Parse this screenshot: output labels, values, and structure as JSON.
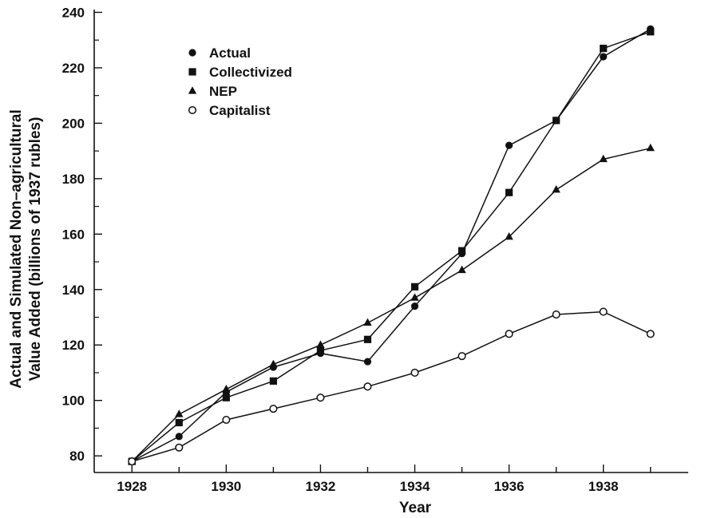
{
  "chart_data": {
    "type": "line",
    "xlabel": "Year",
    "ylabel_lines": [
      "Actual and Simulated Non–agricultural",
      "Value Added (billions of 1937 rubles)"
    ],
    "x": [
      1928,
      1929,
      1930,
      1931,
      1932,
      1933,
      1934,
      1935,
      1936,
      1937,
      1938,
      1939
    ],
    "xlim": [
      1927.2,
      1939.8
    ],
    "ylim": [
      74,
      241
    ],
    "x_ticks": [
      1928,
      1930,
      1932,
      1934,
      1936,
      1938
    ],
    "y_ticks": [
      80,
      100,
      120,
      140,
      160,
      180,
      200,
      220,
      240
    ],
    "grid": false,
    "legend_position": "top-left",
    "series": [
      {
        "name": "Actual",
        "marker": "filled-circle",
        "values": [
          78,
          87,
          103,
          112,
          117,
          114,
          134,
          153,
          192,
          201,
          224,
          234
        ]
      },
      {
        "name": "Collectivized",
        "marker": "filled-square",
        "values": [
          78,
          92,
          101,
          107,
          118,
          122,
          141,
          154,
          175,
          201,
          227,
          233
        ]
      },
      {
        "name": "NEP",
        "marker": "filled-triangle",
        "values": [
          78,
          95,
          104,
          113,
          120,
          128,
          137,
          147,
          159,
          176,
          187,
          191
        ]
      },
      {
        "name": "Capitalist",
        "marker": "open-circle",
        "values": [
          78,
          83,
          93,
          97,
          101,
          105,
          110,
          116,
          124,
          131,
          132,
          124
        ]
      }
    ],
    "colors": {
      "ink": "#111111",
      "background": "#ffffff"
    }
  }
}
